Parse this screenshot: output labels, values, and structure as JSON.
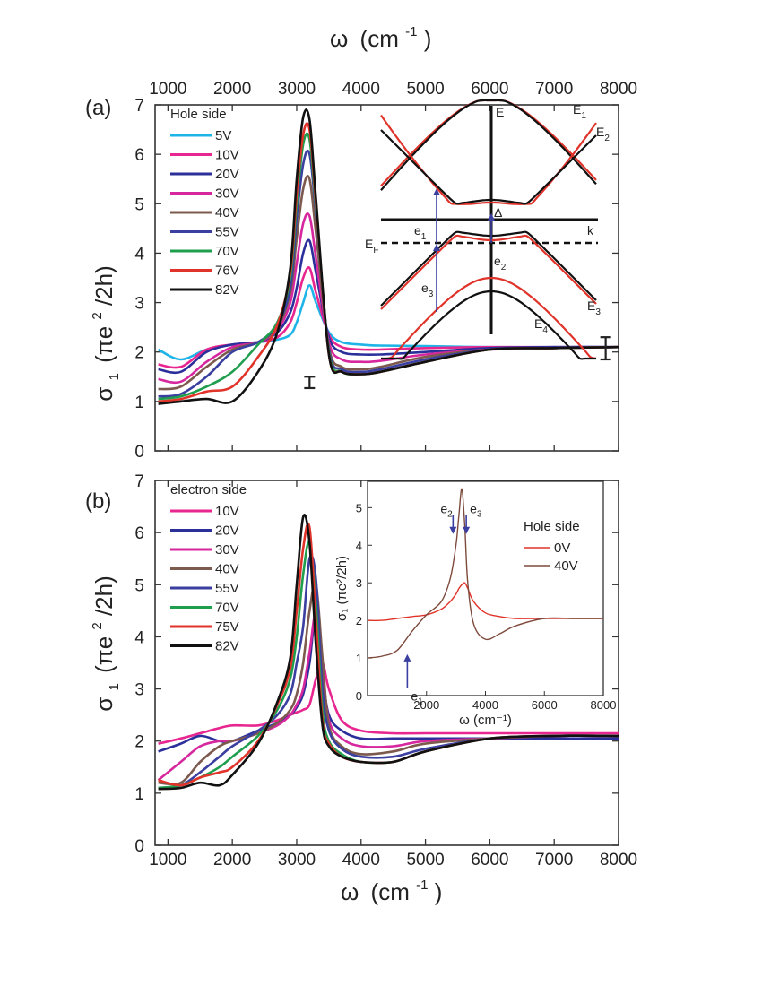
{
  "chart_data": [
    {
      "panel": "(a)",
      "type": "line",
      "top_axis_label": "ω (cm⁻¹)",
      "ylabel": "σ₁ (πe²/2h)",
      "xlim": [
        800,
        8000
      ],
      "ylim": [
        0,
        7
      ],
      "x_ticks": [
        1000,
        2000,
        3000,
        4000,
        5000,
        6000,
        7000,
        8000
      ],
      "y_ticks": [
        0,
        1,
        2,
        3,
        4,
        5,
        6,
        7
      ],
      "legend_title": "Hole side",
      "legend_position": "top-left",
      "grid": false,
      "x": [
        850,
        1200,
        1600,
        2000,
        2400,
        2700,
        2900,
        3000,
        3100,
        3200,
        3300,
        3500,
        3700,
        4000,
        4300,
        5000,
        6000,
        7000,
        8000
      ],
      "series": [
        {
          "name": "5V",
          "color": "#1fb4e8",
          "values": [
            2.05,
            1.85,
            2.05,
            2.15,
            2.2,
            2.25,
            2.35,
            2.6,
            3.0,
            3.35,
            3.0,
            2.4,
            2.2,
            2.15,
            2.13,
            2.12,
            2.1,
            2.1,
            2.1
          ]
        },
        {
          "name": "10V",
          "color": "#e8268f",
          "values": [
            1.75,
            1.7,
            2.05,
            2.15,
            2.2,
            2.3,
            2.6,
            3.0,
            3.5,
            3.7,
            3.2,
            2.35,
            2.1,
            2.05,
            2.05,
            2.08,
            2.1,
            2.1,
            2.1
          ]
        },
        {
          "name": "20V",
          "color": "#2b2f9a",
          "values": [
            1.65,
            1.6,
            2.0,
            2.15,
            2.2,
            2.4,
            2.8,
            3.3,
            4.0,
            4.25,
            3.6,
            2.3,
            2.0,
            1.95,
            1.95,
            2.0,
            2.08,
            2.1,
            2.1
          ]
        },
        {
          "name": "30V",
          "color": "#d6279e",
          "values": [
            1.45,
            1.4,
            1.8,
            2.1,
            2.2,
            2.45,
            3.0,
            3.8,
            4.6,
            4.75,
            3.9,
            2.2,
            1.85,
            1.8,
            1.82,
            1.95,
            2.05,
            2.08,
            2.1
          ]
        },
        {
          "name": "40V",
          "color": "#7d5a4e",
          "values": [
            1.25,
            1.3,
            1.7,
            2.05,
            2.2,
            2.5,
            3.2,
            4.3,
            5.3,
            5.5,
            4.4,
            2.1,
            1.7,
            1.65,
            1.7,
            1.9,
            2.05,
            2.08,
            2.1
          ]
        },
        {
          "name": "55V",
          "color": "#3a3fa0",
          "values": [
            1.1,
            1.15,
            1.5,
            2.0,
            2.2,
            2.55,
            3.3,
            4.7,
            5.8,
            6.0,
            4.8,
            2.05,
            1.65,
            1.6,
            1.65,
            1.85,
            2.05,
            2.08,
            2.1
          ]
        },
        {
          "name": "70V",
          "color": "#1f9e4e",
          "values": [
            1.05,
            1.1,
            1.3,
            1.6,
            2.15,
            2.6,
            3.5,
            5.0,
            6.2,
            6.3,
            4.9,
            2.0,
            1.6,
            1.55,
            1.6,
            1.8,
            2.05,
            2.08,
            2.1
          ]
        },
        {
          "name": "76V",
          "color": "#e0332a",
          "values": [
            1.0,
            1.05,
            1.2,
            1.3,
            1.9,
            2.55,
            3.6,
            5.2,
            6.4,
            6.5,
            5.0,
            1.95,
            1.6,
            1.55,
            1.6,
            1.8,
            2.05,
            2.08,
            2.1
          ]
        },
        {
          "name": "82V",
          "color": "#111111",
          "values": [
            0.95,
            1.0,
            1.05,
            1.0,
            1.6,
            2.4,
            3.7,
            5.5,
            6.75,
            6.7,
            5.1,
            1.95,
            1.6,
            1.55,
            1.6,
            1.8,
            2.05,
            2.08,
            2.1
          ]
        }
      ],
      "error_bars": [
        {
          "x": 3200,
          "low": 1.27,
          "high": 1.5
        },
        {
          "x": 7800,
          "low": 1.85,
          "high": 2.3
        }
      ],
      "inset": {
        "type": "band-diagram",
        "labels": {
          "E": "E",
          "k": "k",
          "E1": "E",
          "E1_sub": "1",
          "E2": "E",
          "E2_sub": "2",
          "E3": "E",
          "E3_sub": "3",
          "E4": "E",
          "E4_sub": "4",
          "EF": "E",
          "EF_sub": "F",
          "delta": "Δ",
          "e1": "e",
          "e1_sub": "1",
          "e2": "e",
          "e2_sub": "2",
          "e3": "e",
          "e3_sub": "3"
        }
      }
    },
    {
      "panel": "(b)",
      "type": "line",
      "xlabel": "ω (cm⁻¹)",
      "ylabel": "σ₁ (πe²/2h)",
      "xlim": [
        800,
        8000
      ],
      "ylim": [
        0,
        7
      ],
      "x_ticks": [
        1000,
        2000,
        3000,
        4000,
        5000,
        6000,
        7000,
        8000
      ],
      "y_ticks": [
        0,
        1,
        2,
        3,
        4,
        5,
        6,
        7
      ],
      "legend_title": "electron side",
      "legend_position": "top-left",
      "grid": false,
      "x": [
        850,
        1200,
        1500,
        1800,
        2000,
        2400,
        2700,
        2900,
        3000,
        3100,
        3200,
        3300,
        3400,
        3500,
        3700,
        4000,
        4500,
        5000,
        6000,
        7000,
        8000
      ],
      "series": [
        {
          "name": "10V",
          "color": "#e8268f",
          "values": [
            1.95,
            2.05,
            2.15,
            2.25,
            2.3,
            2.3,
            2.4,
            2.5,
            2.55,
            2.6,
            2.7,
            3.2,
            3.5,
            3.0,
            2.4,
            2.2,
            2.15,
            2.15,
            2.15,
            2.15,
            2.15
          ]
        },
        {
          "name": "20V",
          "color": "#2b2f9a",
          "values": [
            1.8,
            1.95,
            2.1,
            2.0,
            2.0,
            2.2,
            2.35,
            2.5,
            2.65,
            2.9,
            3.5,
            4.45,
            3.3,
            2.5,
            2.2,
            2.05,
            2.05,
            2.05,
            2.05,
            2.05,
            2.05
          ]
        },
        {
          "name": "30V",
          "color": "#d6279e",
          "values": [
            1.25,
            1.6,
            1.9,
            2.0,
            2.0,
            2.15,
            2.3,
            2.5,
            2.7,
            3.0,
            3.7,
            4.45,
            3.4,
            2.4,
            2.05,
            1.9,
            1.9,
            2.0,
            2.05,
            2.1,
            2.1
          ]
        },
        {
          "name": "40V",
          "color": "#7d5a4e",
          "values": [
            1.2,
            1.2,
            1.6,
            1.9,
            2.0,
            2.15,
            2.35,
            2.6,
            2.9,
            3.5,
            4.5,
            5.0,
            3.6,
            2.3,
            1.9,
            1.75,
            1.8,
            1.95,
            2.05,
            2.1,
            2.1
          ]
        },
        {
          "name": "55V",
          "color": "#3a3fa0",
          "values": [
            1.1,
            1.15,
            1.4,
            1.7,
            1.9,
            2.2,
            2.5,
            2.9,
            3.5,
            4.2,
            5.5,
            5.1,
            3.0,
            2.2,
            1.85,
            1.7,
            1.7,
            1.85,
            2.05,
            2.1,
            2.1
          ]
        },
        {
          "name": "70V",
          "color": "#1f9e4e",
          "values": [
            1.1,
            1.15,
            1.3,
            1.5,
            1.7,
            2.1,
            2.6,
            3.2,
            4.0,
            5.2,
            5.8,
            4.6,
            2.6,
            2.0,
            1.75,
            1.6,
            1.6,
            1.8,
            2.05,
            2.1,
            2.1
          ]
        },
        {
          "name": "75V",
          "color": "#e0332a",
          "values": [
            1.25,
            1.15,
            1.3,
            1.4,
            1.5,
            2.0,
            2.7,
            3.4,
            4.5,
            5.7,
            6.1,
            4.3,
            2.4,
            1.95,
            1.7,
            1.6,
            1.6,
            1.8,
            2.05,
            2.1,
            2.1
          ]
        },
        {
          "name": "82V",
          "color": "#111111",
          "values": [
            1.08,
            1.1,
            1.2,
            1.15,
            1.35,
            1.95,
            2.75,
            3.6,
            5.0,
            6.3,
            5.8,
            3.8,
            2.3,
            1.9,
            1.7,
            1.6,
            1.6,
            1.8,
            2.05,
            2.1,
            2.1
          ]
        }
      ],
      "inset": {
        "type": "line",
        "xlabel": "ω (cm⁻¹)",
        "ylabel": "σ₁ (πe²/2h)",
        "xlim": [
          0,
          8000
        ],
        "ylim": [
          0,
          5.7
        ],
        "x_ticks": [
          2000,
          4000,
          6000,
          8000
        ],
        "y_ticks": [
          0,
          1,
          2,
          3,
          4,
          5
        ],
        "legend_title": "Hole side",
        "legend_position": "top-right",
        "x": [
          0,
          500,
          1000,
          1500,
          2000,
          2500,
          2800,
          3000,
          3100,
          3200,
          3300,
          3400,
          3600,
          4000,
          4500,
          5000,
          6000,
          7000,
          8000
        ],
        "series": [
          {
            "name": "0V",
            "color": "#e0332a",
            "values": [
              2.0,
              2.0,
              2.05,
              2.1,
              2.15,
              2.3,
              2.5,
              2.7,
              2.85,
              2.95,
              3.0,
              2.85,
              2.5,
              2.2,
              2.1,
              2.05,
              2.05,
              2.05,
              2.05
            ]
          },
          {
            "name": "40V",
            "color": "#7d4a3c",
            "values": [
              1.0,
              1.05,
              1.2,
              1.7,
              2.15,
              2.5,
              3.1,
              4.0,
              4.8,
              5.5,
              4.5,
              3.0,
              1.9,
              1.5,
              1.65,
              1.85,
              2.05,
              2.05,
              2.05
            ]
          }
        ],
        "annotations": [
          {
            "label": "e",
            "sub": "1",
            "x": 1350,
            "y_tail": 0.2,
            "y_head": 1.1
          },
          {
            "label": "e",
            "sub": "2",
            "x": 2900,
            "y_tail": 4.8,
            "y_head": 4.3
          },
          {
            "label": "e",
            "sub": "3",
            "x": 3350,
            "y_tail": 4.8,
            "y_head": 4.3
          }
        ]
      }
    }
  ],
  "text": {
    "panel_a_label": "(a)",
    "panel_b_label": "(b)",
    "top_axis_omega": "ω",
    "top_axis_unit": "(cm",
    "top_axis_exp": "-1",
    "top_axis_close": ")",
    "bottom_axis_omega": "ω",
    "bottom_axis_unit": "(cm",
    "bottom_axis_exp": "-1",
    "bottom_axis_close": ")",
    "ylabel_sigma": "σ",
    "ylabel_sub": "1",
    "ylabel_unit": "(πe",
    "ylabel_exp": "2",
    "ylabel_close": "/2h)",
    "legend_a_title": "Hole side",
    "legend_b_title": "electron side",
    "inset_legend_title": "Hole side",
    "inset_xlabel": "ω (cm⁻¹)",
    "inset_ylabel": "σ₁ (πe²/2h)"
  }
}
